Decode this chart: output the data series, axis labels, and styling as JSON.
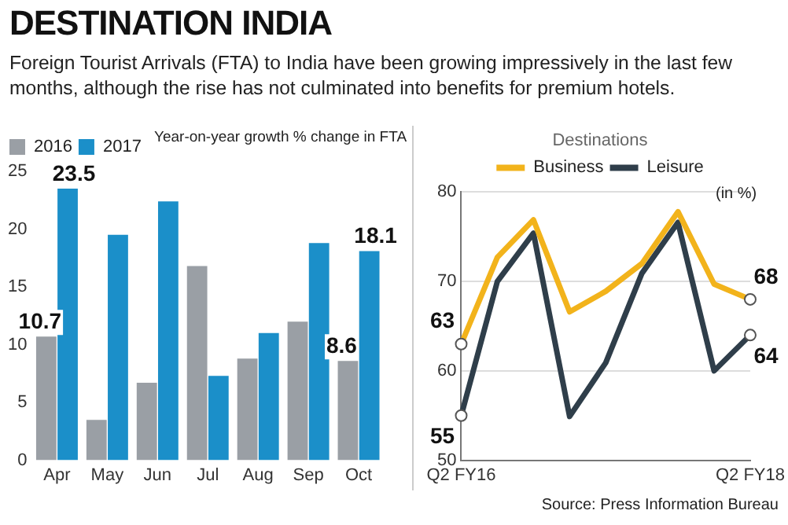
{
  "chart_data": [
    {
      "type": "bar",
      "title": "DESTINATION INDIA",
      "subtitle": "Foreign Tourist Arrivals (FTA) to India have been growing impressively in the last few months, although the rise has not culminated into benefits for premium hotels.",
      "annotations": [
        "Year-on-year growth % change in FTA"
      ],
      "categories": [
        "Apr",
        "May",
        "Jun",
        "Jul",
        "Aug",
        "Sep",
        "Oct"
      ],
      "series": [
        {
          "name": "2016",
          "color": "#9a9fa5",
          "values": [
            10.7,
            3.5,
            6.7,
            16.8,
            8.8,
            12.0,
            8.6
          ],
          "value_labels": [
            "10.7",
            null,
            null,
            null,
            null,
            null,
            "8.6"
          ]
        },
        {
          "name": "2017",
          "color": "#1b8fc9",
          "values": [
            23.5,
            19.5,
            22.4,
            7.3,
            11.0,
            18.8,
            18.1
          ],
          "value_labels": [
            "23.5",
            null,
            null,
            null,
            null,
            null,
            "18.1"
          ]
        }
      ],
      "ylim": [
        0,
        25
      ],
      "yticks": [
        0,
        5,
        10,
        15,
        20,
        25
      ],
      "grid": false,
      "legend": "top left"
    },
    {
      "type": "line",
      "legend_title": "Destinations",
      "annotations": [
        "(in %)",
        "Source: Press Information Bureau"
      ],
      "categories": [
        "Q2 FY16",
        null,
        null,
        null,
        null,
        null,
        null,
        null,
        "Q2 FY18"
      ],
      "series": [
        {
          "name": "Business",
          "color": "#f2b31b",
          "values": [
            63,
            72.7,
            76.9,
            66.6,
            68.9,
            72,
            77.8,
            69.7,
            68
          ],
          "value_labels": [
            "63",
            null,
            null,
            null,
            null,
            null,
            null,
            null,
            "68"
          ]
        },
        {
          "name": "Leisure",
          "color": "#2f3e4a",
          "values": [
            55,
            70,
            75.4,
            54.9,
            60.9,
            70.9,
            76.6,
            60,
            64
          ],
          "value_labels": [
            "55",
            null,
            null,
            null,
            null,
            null,
            null,
            null,
            "64"
          ]
        }
      ],
      "ylim": [
        50,
        80
      ],
      "yticks": [
        50,
        60,
        70,
        80
      ],
      "grid": "y",
      "legend": "top",
      "line_style": "solid"
    }
  ]
}
